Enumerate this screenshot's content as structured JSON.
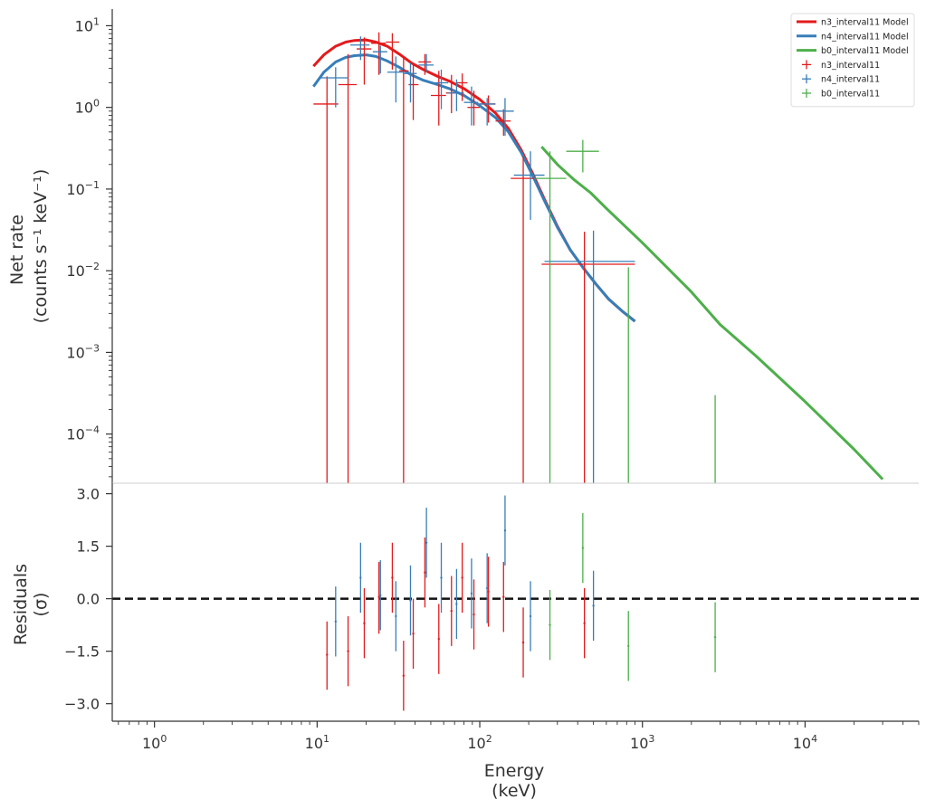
{
  "chart_data": {
    "type": "scatter",
    "xscale": "log",
    "xlim": [
      0.55,
      50000
    ],
    "xlabel_line1": "Energy",
    "xlabel_line2": "(keV)",
    "x_ticks": [
      {
        "value": 1,
        "base": "10",
        "exp": "0"
      },
      {
        "value": 10,
        "base": "10",
        "exp": "1"
      },
      {
        "value": 100,
        "base": "10",
        "exp": "2"
      },
      {
        "value": 1000,
        "base": "10",
        "exp": "3"
      },
      {
        "value": 10000,
        "base": "10",
        "exp": "4"
      }
    ],
    "top_panel": {
      "yscale": "log",
      "ylim": [
        2.5e-05,
        16
      ],
      "ylabel_line1": "Net rate",
      "ylabel_line2": "(counts s⁻¹ keV⁻¹)",
      "y_ticks": [
        {
          "value": 10,
          "base": "10",
          "exp": "1"
        },
        {
          "value": 1,
          "base": "10",
          "exp": "0"
        },
        {
          "value": 0.1,
          "base": "10",
          "exp": "−1"
        },
        {
          "value": 0.01,
          "base": "10",
          "exp": "−2"
        },
        {
          "value": 0.001,
          "base": "10",
          "exp": "−3"
        },
        {
          "value": 0.0001,
          "base": "10",
          "exp": "−4"
        }
      ],
      "models": [
        {
          "name": "n3_interval11 Model",
          "color": "#e31a1c",
          "x": [
            9.5,
            11,
            13,
            15,
            17,
            20,
            23,
            27,
            32,
            38,
            45,
            55,
            65,
            80,
            100,
            125,
            150,
            180,
            210,
            250,
            300,
            360,
            430,
            520,
            620,
            750,
            900
          ],
          "y": [
            3.2,
            4.4,
            5.6,
            6.3,
            6.6,
            6.7,
            6.3,
            5.6,
            4.5,
            3.5,
            2.9,
            2.4,
            2.1,
            1.7,
            1.25,
            0.85,
            0.55,
            0.3,
            0.16,
            0.075,
            0.035,
            0.018,
            0.011,
            0.0068,
            0.0045,
            0.0032,
            0.0024
          ]
        },
        {
          "name": "n4_interval11 Model",
          "color": "#377eb8",
          "x": [
            9.5,
            11,
            13,
            15,
            17,
            20,
            23,
            27,
            32,
            38,
            45,
            55,
            65,
            80,
            100,
            125,
            150,
            180,
            210,
            250,
            300,
            360,
            430,
            520,
            620,
            750,
            900
          ],
          "y": [
            1.8,
            2.7,
            3.6,
            4.1,
            4.3,
            4.4,
            4.2,
            3.7,
            3.1,
            2.5,
            2.15,
            1.9,
            1.7,
            1.4,
            1.05,
            0.75,
            0.5,
            0.28,
            0.15,
            0.072,
            0.034,
            0.018,
            0.011,
            0.0068,
            0.0045,
            0.0032,
            0.0024
          ]
        },
        {
          "name": "b0_interval11 Model",
          "color": "#4daf4a",
          "x": [
            240,
            300,
            380,
            480,
            600,
            1000,
            2000,
            3000,
            5000,
            10000,
            20000,
            30000
          ],
          "y": [
            0.33,
            0.2,
            0.13,
            0.09,
            0.058,
            0.022,
            0.0055,
            0.0022,
            0.0009,
            0.00025,
            6.5e-05,
            2.8e-05
          ]
        }
      ],
      "data_series": [
        {
          "name": "n3_interval11",
          "color": "#e31a1c",
          "points": [
            {
              "x": 11.5,
              "xlo": 9.5,
              "xhi": 13.5,
              "y": 1.1,
              "ylo": 1e-05,
              "yhi": 2.4
            },
            {
              "x": 15.5,
              "xlo": 13.5,
              "xhi": 17.5,
              "y": 1.9,
              "ylo": 1e-05,
              "yhi": 4.5
            },
            {
              "x": 19.5,
              "xlo": 17.5,
              "xhi": 21.5,
              "y": 5.2,
              "ylo": 1.9,
              "yhi": 7.2
            },
            {
              "x": 24,
              "xlo": 21.5,
              "xhi": 26.5,
              "y": 6.1,
              "ylo": 2.5,
              "yhi": 8.3
            },
            {
              "x": 29,
              "xlo": 26.5,
              "xhi": 32,
              "y": 6.3,
              "ylo": 2.9,
              "yhi": 8.1
            },
            {
              "x": 34,
              "xlo": 32,
              "xhi": 36.5,
              "y": 2.8,
              "ylo": 1e-05,
              "yhi": 4.0
            },
            {
              "x": 39,
              "xlo": 36.5,
              "xhi": 42,
              "y": 1.9,
              "ylo": 0.7,
              "yhi": 3.5
            },
            {
              "x": 46,
              "xlo": 42,
              "xhi": 50,
              "y": 3.6,
              "ylo": 2.5,
              "yhi": 4.5
            },
            {
              "x": 56,
              "xlo": 50,
              "xhi": 62,
              "y": 1.4,
              "ylo": 0.6,
              "yhi": 2.8
            },
            {
              "x": 67,
              "xlo": 62,
              "xhi": 72,
              "y": 1.5,
              "ylo": 0.85,
              "yhi": 2.5
            },
            {
              "x": 78,
              "xlo": 72,
              "xhi": 84,
              "y": 2.0,
              "ylo": 1.2,
              "yhi": 2.6
            },
            {
              "x": 92,
              "xlo": 84,
              "xhi": 100,
              "y": 1.0,
              "ylo": 0.6,
              "yhi": 1.6
            },
            {
              "x": 113,
              "xlo": 100,
              "xhi": 125,
              "y": 1.1,
              "ylo": 0.65,
              "yhi": 1.4
            },
            {
              "x": 140,
              "xlo": 125,
              "xhi": 155,
              "y": 0.68,
              "ylo": 0.45,
              "yhi": 0.95
            },
            {
              "x": 185,
              "xlo": 155,
              "xhi": 215,
              "y": 0.135,
              "ylo": 1e-05,
              "yhi": 0.25
            },
            {
              "x": 440,
              "xlo": 240,
              "xhi": 900,
              "y": 0.012,
              "ylo": 1e-05,
              "yhi": 0.03
            }
          ]
        },
        {
          "name": "n4_interval11",
          "color": "#377eb8",
          "points": [
            {
              "x": 13,
              "xlo": 10.5,
              "xhi": 15.5,
              "y": 2.3,
              "ylo": 1.0,
              "yhi": 3.1
            },
            {
              "x": 18.5,
              "xlo": 16,
              "xhi": 21,
              "y": 5.8,
              "ylo": 3.8,
              "yhi": 7.4
            },
            {
              "x": 24.5,
              "xlo": 22,
              "xhi": 27,
              "y": 4.8,
              "ylo": 2.6,
              "yhi": 5.7
            },
            {
              "x": 30.5,
              "xlo": 27,
              "xhi": 34,
              "y": 2.7,
              "ylo": 1.15,
              "yhi": 4.2
            },
            {
              "x": 37.5,
              "xlo": 34,
              "xhi": 41,
              "y": 2.6,
              "ylo": 1.15,
              "yhi": 3.5
            },
            {
              "x": 47,
              "xlo": 42,
              "xhi": 52,
              "y": 3.3,
              "ylo": 2.7,
              "yhi": 4.5
            },
            {
              "x": 58,
              "xlo": 52,
              "xhi": 64,
              "y": 2.0,
              "ylo": 0.95,
              "yhi": 2.9
            },
            {
              "x": 72,
              "xlo": 64,
              "xhi": 80,
              "y": 1.5,
              "ylo": 0.9,
              "yhi": 2.2
            },
            {
              "x": 89,
              "xlo": 80,
              "xhi": 98,
              "y": 1.15,
              "ylo": 0.6,
              "yhi": 1.8
            },
            {
              "x": 111,
              "xlo": 98,
              "xhi": 124,
              "y": 1.1,
              "ylo": 0.6,
              "yhi": 1.3
            },
            {
              "x": 143,
              "xlo": 124,
              "xhi": 162,
              "y": 0.9,
              "ylo": 0.45,
              "yhi": 1.3
            },
            {
              "x": 205,
              "xlo": 162,
              "xhi": 250,
              "y": 0.148,
              "ylo": 0.042,
              "yhi": 0.29
            },
            {
              "x": 500,
              "xlo": 250,
              "xhi": 900,
              "y": 0.013,
              "ylo": 1e-05,
              "yhi": 0.031
            }
          ]
        },
        {
          "name": "b0_interval11",
          "color": "#4daf4a",
          "points": [
            {
              "x": 270,
              "xlo": 220,
              "xhi": 340,
              "y": 0.135,
              "ylo": 1e-05,
              "yhi": 0.29
            },
            {
              "x": 430,
              "xlo": 340,
              "xhi": 540,
              "y": 0.29,
              "ylo": 0.16,
              "yhi": 0.4
            },
            {
              "x": 820,
              "xlo": 820,
              "xhi": 820,
              "y": 0.011,
              "ylo": 1e-05,
              "yhi": 0.011
            },
            {
              "x": 2800,
              "xlo": 2800,
              "xhi": 2800,
              "y": 0.0003,
              "ylo": 1e-05,
              "yhi": 0.0003
            }
          ]
        }
      ],
      "legend_position": "upper right",
      "legend": [
        {
          "label": "n3_interval11 Model",
          "kind": "line",
          "color": "#e31a1c"
        },
        {
          "label": "n4_interval11 Model",
          "kind": "line",
          "color": "#377eb8"
        },
        {
          "label": "b0_interval11 Model",
          "kind": "line",
          "color": "#4daf4a"
        },
        {
          "label": "n3_interval11",
          "kind": "marker",
          "color": "#e31a1c"
        },
        {
          "label": "n4_interval11",
          "kind": "marker",
          "color": "#377eb8"
        },
        {
          "label": "b0_interval11",
          "kind": "marker",
          "color": "#4daf4a"
        }
      ]
    },
    "bottom_panel": {
      "ylim": [
        -3.5,
        3.3
      ],
      "ylabel_line1": "Residuals",
      "ylabel_line2": "(σ)",
      "y_ticks": [
        {
          "value": 3.0,
          "label": "3.0"
        },
        {
          "value": 1.5,
          "label": "1.5"
        },
        {
          "value": 0.0,
          "label": "0.0"
        },
        {
          "value": -1.5,
          "label": "−1.5"
        },
        {
          "value": -3.0,
          "label": "−3.0"
        }
      ],
      "zero_line": 0,
      "residuals": [
        {
          "series": "n3_interval11",
          "color": "#e31a1c",
          "points": [
            {
              "x": 11.5,
              "y": -1.6,
              "lo": -2.6,
              "hi": -0.65
            },
            {
              "x": 15.5,
              "y": -1.5,
              "lo": -2.5,
              "hi": -0.5
            },
            {
              "x": 19.5,
              "y": -0.7,
              "lo": -1.7,
              "hi": 0.3
            },
            {
              "x": 24,
              "y": 0.05,
              "lo": -1.0,
              "hi": 1.05
            },
            {
              "x": 29,
              "y": 0.6,
              "lo": -0.4,
              "hi": 1.6
            },
            {
              "x": 34,
              "y": -2.2,
              "lo": -3.2,
              "hi": -1.2
            },
            {
              "x": 39,
              "y": -1.0,
              "lo": -2.0,
              "hi": 0.0
            },
            {
              "x": 46,
              "y": 0.75,
              "lo": -0.25,
              "hi": 1.75
            },
            {
              "x": 56,
              "y": -1.15,
              "lo": -2.15,
              "hi": -0.15
            },
            {
              "x": 67,
              "y": -0.35,
              "lo": -1.35,
              "hi": 0.65
            },
            {
              "x": 78,
              "y": 0.6,
              "lo": -0.4,
              "hi": 1.6
            },
            {
              "x": 92,
              "y": -0.45,
              "lo": -1.45,
              "hi": 0.55
            },
            {
              "x": 113,
              "y": 0.2,
              "lo": -0.8,
              "hi": 1.2
            },
            {
              "x": 140,
              "y": 0.05,
              "lo": -0.95,
              "hi": 1.05
            },
            {
              "x": 185,
              "y": -1.25,
              "lo": -2.25,
              "hi": -0.25
            },
            {
              "x": 440,
              "y": -0.7,
              "lo": -1.7,
              "hi": 0.3
            }
          ]
        },
        {
          "series": "n4_interval11",
          "color": "#377eb8",
          "points": [
            {
              "x": 13,
              "y": -0.65,
              "lo": -1.65,
              "hi": 0.35
            },
            {
              "x": 18.5,
              "y": 0.6,
              "lo": -0.4,
              "hi": 1.6
            },
            {
              "x": 24.5,
              "y": 0.1,
              "lo": -0.9,
              "hi": 1.1
            },
            {
              "x": 30.5,
              "y": -0.5,
              "lo": -1.5,
              "hi": 0.5
            },
            {
              "x": 37.5,
              "y": -0.05,
              "lo": -1.05,
              "hi": 0.95
            },
            {
              "x": 47,
              "y": 1.6,
              "lo": 0.6,
              "hi": 2.6
            },
            {
              "x": 58,
              "y": 0.6,
              "lo": -0.4,
              "hi": 1.6
            },
            {
              "x": 72,
              "y": -0.15,
              "lo": -1.15,
              "hi": 0.85
            },
            {
              "x": 89,
              "y": 0.15,
              "lo": -0.85,
              "hi": 1.15
            },
            {
              "x": 111,
              "y": 0.3,
              "lo": -0.7,
              "hi": 1.3
            },
            {
              "x": 143,
              "y": 1.95,
              "lo": 0.95,
              "hi": 2.95
            },
            {
              "x": 205,
              "y": -0.5,
              "lo": -1.5,
              "hi": 0.5
            },
            {
              "x": 500,
              "y": -0.2,
              "lo": -1.2,
              "hi": 0.8
            }
          ]
        },
        {
          "series": "b0_interval11",
          "color": "#4daf4a",
          "points": [
            {
              "x": 270,
              "y": -0.75,
              "lo": -1.75,
              "hi": 0.25
            },
            {
              "x": 430,
              "y": 1.45,
              "lo": 0.45,
              "hi": 2.45
            },
            {
              "x": 820,
              "y": -1.35,
              "lo": -2.35,
              "hi": -0.35
            },
            {
              "x": 2800,
              "y": -1.1,
              "lo": -2.1,
              "hi": -0.1
            }
          ]
        }
      ]
    }
  }
}
